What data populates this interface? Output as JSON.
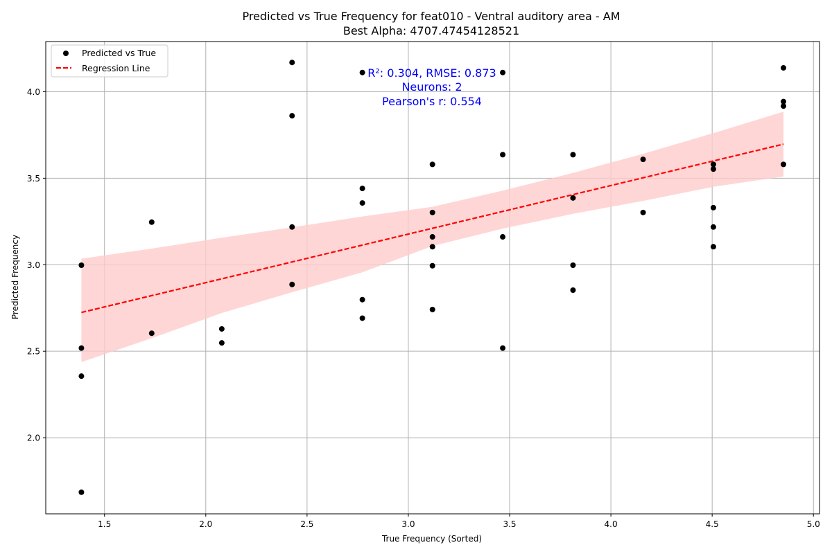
{
  "chart_data": {
    "type": "scatter",
    "title_line1": "Predicted vs True Frequency for feat010 - Ventral auditory area - AM",
    "title_line2": "Best Alpha: 4707.47454128521",
    "xlabel": "True Frequency (Sorted)",
    "ylabel": "Predicted Frequency",
    "xlim": [
      1.21,
      5.03
    ],
    "ylim": [
      1.56,
      4.29
    ],
    "xticks": [
      1.5,
      2.0,
      2.5,
      3.0,
      3.5,
      4.0,
      4.5,
      5.0
    ],
    "xtick_labels": [
      "1.5",
      "2.0",
      "2.5",
      "3.0",
      "3.5",
      "4.0",
      "4.5",
      "5.0"
    ],
    "yticks": [
      2.0,
      2.5,
      3.0,
      3.5,
      4.0
    ],
    "ytick_labels": [
      "2.0",
      "2.5",
      "3.0",
      "3.5",
      "4.0"
    ],
    "grid": true,
    "legend_position": "top-left",
    "legend": [
      "Predicted vs True",
      "Regression Line"
    ],
    "annotation": [
      "R²: 0.304, RMSE: 0.873",
      "Neurons: 2",
      "Pearson's r: 0.554"
    ],
    "colors": {
      "points": "#000000",
      "regression": "#ff0000",
      "band": "#ffcccc",
      "annotation": "#0000ff",
      "grid": "#b0b0b0"
    },
    "series": [
      {
        "name": "Predicted vs True",
        "points": [
          [
            1.386,
            1.685
          ],
          [
            1.386,
            2.356
          ],
          [
            1.386,
            2.518
          ],
          [
            1.386,
            2.997
          ],
          [
            1.733,
            2.604
          ],
          [
            1.733,
            3.246
          ],
          [
            2.079,
            2.548
          ],
          [
            2.079,
            2.629
          ],
          [
            2.426,
            2.886
          ],
          [
            2.426,
            3.218
          ],
          [
            2.426,
            3.861
          ],
          [
            2.426,
            4.169
          ],
          [
            2.773,
            2.691
          ],
          [
            2.773,
            2.798
          ],
          [
            2.773,
            3.357
          ],
          [
            2.773,
            3.441
          ],
          [
            2.773,
            4.111
          ],
          [
            3.119,
            2.741
          ],
          [
            3.119,
            2.994
          ],
          [
            3.119,
            3.104
          ],
          [
            3.119,
            3.161
          ],
          [
            3.119,
            3.302
          ],
          [
            3.119,
            3.58
          ],
          [
            3.466,
            2.518
          ],
          [
            3.466,
            3.161
          ],
          [
            3.466,
            3.636
          ],
          [
            3.466,
            4.111
          ],
          [
            3.813,
            2.853
          ],
          [
            3.813,
            2.997
          ],
          [
            3.813,
            3.386
          ],
          [
            3.813,
            3.636
          ],
          [
            4.159,
            3.302
          ],
          [
            4.159,
            3.609
          ],
          [
            4.506,
            3.104
          ],
          [
            4.506,
            3.218
          ],
          [
            4.506,
            3.33
          ],
          [
            4.506,
            3.553
          ],
          [
            4.506,
            3.58
          ],
          [
            4.852,
            3.58
          ],
          [
            4.852,
            3.917
          ],
          [
            4.852,
            3.943
          ],
          [
            4.852,
            4.138
          ]
        ]
      },
      {
        "name": "Regression Line",
        "x": [
          1.386,
          4.852
        ],
        "y": [
          2.724,
          3.697
        ]
      }
    ],
    "confidence_band": {
      "x": [
        1.386,
        1.733,
        2.079,
        2.426,
        2.773,
        3.119,
        3.466,
        3.813,
        4.159,
        4.506,
        4.852
      ],
      "upper": [
        3.035,
        3.093,
        3.156,
        3.216,
        3.279,
        3.335,
        3.428,
        3.531,
        3.641,
        3.761,
        3.885
      ],
      "lower": [
        2.437,
        2.575,
        2.721,
        2.841,
        2.956,
        3.108,
        3.209,
        3.294,
        3.369,
        3.45,
        3.51
      ]
    }
  }
}
